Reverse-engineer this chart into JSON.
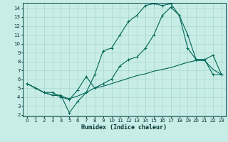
{
  "xlabel": "Humidex (Indice chaleur)",
  "background_color": "#c8ece6",
  "grid_color": "#a8d8d0",
  "line_color": "#006655",
  "xlim": [
    -0.5,
    23.5
  ],
  "ylim": [
    1.8,
    14.6
  ],
  "xticks": [
    0,
    1,
    2,
    3,
    4,
    5,
    6,
    7,
    8,
    9,
    10,
    11,
    12,
    13,
    14,
    15,
    16,
    17,
    18,
    19,
    20,
    21,
    22,
    23
  ],
  "yticks": [
    2,
    3,
    4,
    5,
    6,
    7,
    8,
    9,
    10,
    11,
    12,
    13,
    14
  ],
  "line1_x": [
    0,
    1,
    2,
    3,
    4,
    5,
    6,
    7,
    8,
    9,
    10,
    11,
    12,
    13,
    14,
    15,
    16,
    17,
    18,
    19,
    20,
    21,
    22,
    23
  ],
  "line1_y": [
    5.5,
    5.0,
    4.5,
    4.2,
    4.2,
    2.2,
    3.5,
    4.5,
    6.5,
    9.2,
    9.5,
    11.0,
    12.5,
    13.2,
    14.3,
    14.5,
    14.3,
    14.5,
    13.2,
    11.0,
    8.2,
    8.2,
    8.7,
    6.5
  ],
  "line2_x": [
    0,
    1,
    2,
    3,
    4,
    5,
    6,
    7,
    8,
    9,
    10,
    11,
    12,
    13,
    14,
    15,
    16,
    17,
    18,
    19,
    20,
    21,
    22,
    23
  ],
  "line2_y": [
    5.5,
    5.0,
    4.5,
    4.2,
    4.1,
    3.8,
    4.1,
    4.5,
    5.0,
    5.2,
    5.5,
    5.8,
    6.1,
    6.4,
    6.6,
    6.9,
    7.1,
    7.3,
    7.6,
    7.9,
    8.1,
    8.1,
    7.1,
    6.5
  ],
  "line3_x": [
    0,
    1,
    2,
    3,
    4,
    5,
    6,
    7,
    8,
    9,
    10,
    11,
    12,
    13,
    14,
    15,
    16,
    17,
    18,
    19,
    20,
    21,
    22,
    23
  ],
  "line3_y": [
    5.5,
    5.0,
    4.5,
    4.5,
    4.0,
    3.7,
    4.8,
    6.3,
    5.0,
    5.5,
    6.0,
    7.5,
    8.2,
    8.5,
    9.5,
    11.0,
    13.2,
    14.1,
    13.2,
    9.5,
    8.2,
    8.2,
    6.5,
    6.5
  ]
}
